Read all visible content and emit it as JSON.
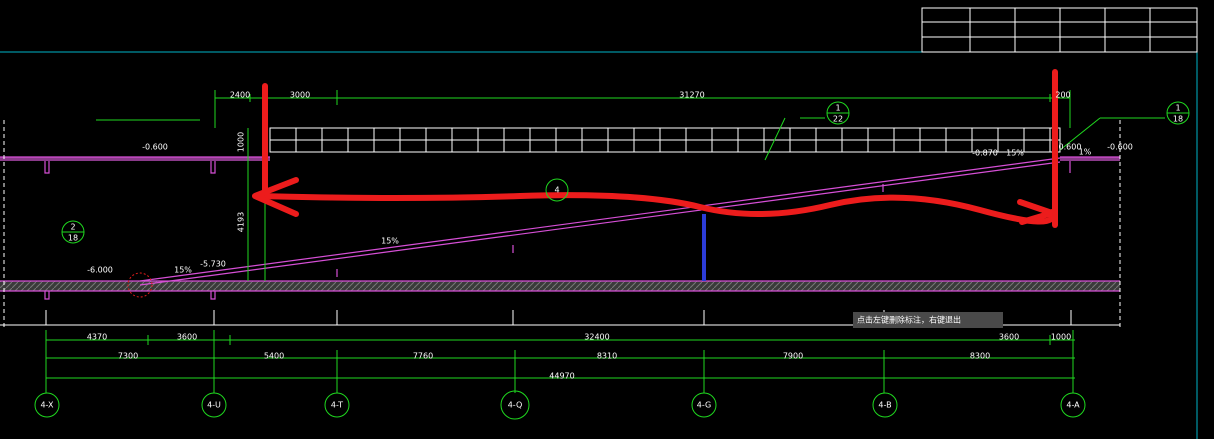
{
  "drawing": {
    "top_dims": [
      "2400",
      "3000",
      "31270",
      "200"
    ],
    "vertical_dims": [
      "1000",
      "4193"
    ],
    "elevations": [
      "-0.600",
      "-0.870",
      "0.600",
      "-0.600",
      "-6.000",
      "-5.730"
    ],
    "slopes": [
      "15%",
      "15%",
      "15%",
      "1%"
    ],
    "callouts": [
      {
        "top": "1",
        "bottom": "22"
      },
      {
        "top": "1",
        "bottom": "18"
      },
      {
        "top": "2",
        "bottom": "18"
      },
      {
        "top": "4"
      }
    ],
    "dims_row1": [
      "4370",
      "3600",
      "32400",
      "3600",
      "1000"
    ],
    "dims_row2": [
      "7300",
      "5400",
      "7760",
      "8310",
      "7900",
      "8300"
    ],
    "dims_row3": [
      "44970"
    ],
    "axes": [
      "4-X",
      "4-U",
      "4-T",
      "4-Q",
      "4-G",
      "4-B",
      "4-A"
    ],
    "tooltip": "点击左键删除标注，右键退出"
  }
}
